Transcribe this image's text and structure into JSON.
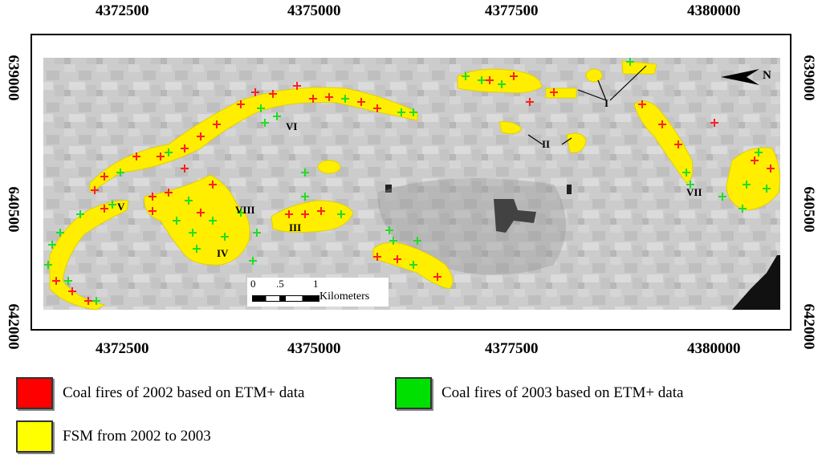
{
  "top_ticks": [
    "4372500",
    "4375000",
    "4377500",
    "4380000"
  ],
  "bottom_ticks": [
    "4372500",
    "4375000",
    "4377500",
    "4380000"
  ],
  "left_ticks": [
    "639000",
    "640500",
    "642000"
  ],
  "right_ticks": [
    "639000",
    "640500",
    "642000"
  ],
  "zone_labels": [
    "I",
    "II",
    "III",
    "IV",
    "V",
    "VI",
    "VII",
    "VIII"
  ],
  "north_label": "N",
  "scale_bar": {
    "ticks": [
      "0",
      ".5",
      "1"
    ],
    "unit": "Kilometers"
  },
  "legend": [
    {
      "label": "Coal fires of 2002 based on ETM+ data",
      "color": "#ff0000"
    },
    {
      "label": "Coal fires of 2003 based on ETM+ data",
      "color": "#00e000"
    },
    {
      "label": "FSM from 2002 to 2003",
      "color": "#ffff00"
    }
  ],
  "colors": {
    "fire_2002": "#ff2020",
    "fire_2003": "#22dd22",
    "fsm": "#ffee00"
  }
}
